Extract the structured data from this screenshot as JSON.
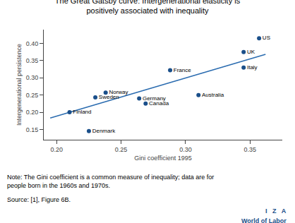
{
  "chart_data": {
    "type": "scatter",
    "title": "The Great Gatsby curve: Intergenerational elasticity is\npositively associated with inequality",
    "xlabel": "Gini coefficient 1995",
    "ylabel": "Intergenerational persistence",
    "series": [
      {
        "type": "line",
        "color": "#2b6cb0",
        "x": [
          0.195,
          0.362
        ],
        "values": [
          0.183,
          0.368
        ]
      },
      {
        "type": "scatter",
        "color": "#1a4f8a",
        "x": [
          0.21,
          0.225,
          0.23,
          0.238,
          0.264,
          0.269,
          0.288,
          0.31,
          0.345,
          0.345,
          0.357
        ],
        "values": [
          0.2,
          0.145,
          0.243,
          0.257,
          0.24,
          0.225,
          0.322,
          0.25,
          0.33,
          0.375,
          0.415
        ],
        "labels": [
          "Finland",
          "Denmark",
          "Sweden",
          "Norway",
          "Germany",
          "Canada",
          "France",
          "Australia",
          "Italy",
          "UK",
          "US"
        ]
      }
    ],
    "xlim": [
      0.19,
      0.375
    ],
    "ylim": [
      0.12,
      0.44
    ],
    "xticks": [
      {
        "value": 0.2,
        "label": "0.20"
      },
      0.25,
      {
        "value": 0.3,
        "label": "0.30"
      },
      0.35
    ],
    "yticks": [
      0.15,
      {
        "value": 0.2,
        "label": "0.20"
      },
      0.25,
      {
        "value": 0.3,
        "label": "0.30"
      },
      0.35,
      {
        "value": 0.4,
        "label": "0.40"
      }
    ],
    "grid": false,
    "annotations": [
      "Note: The Gini coefficient is a common measure of inequality; data are for\npeople born in the 1960s and 1970s.",
      "Source: [1], Figure 6B.",
      "I   Z   A",
      "World of Labor"
    ]
  }
}
